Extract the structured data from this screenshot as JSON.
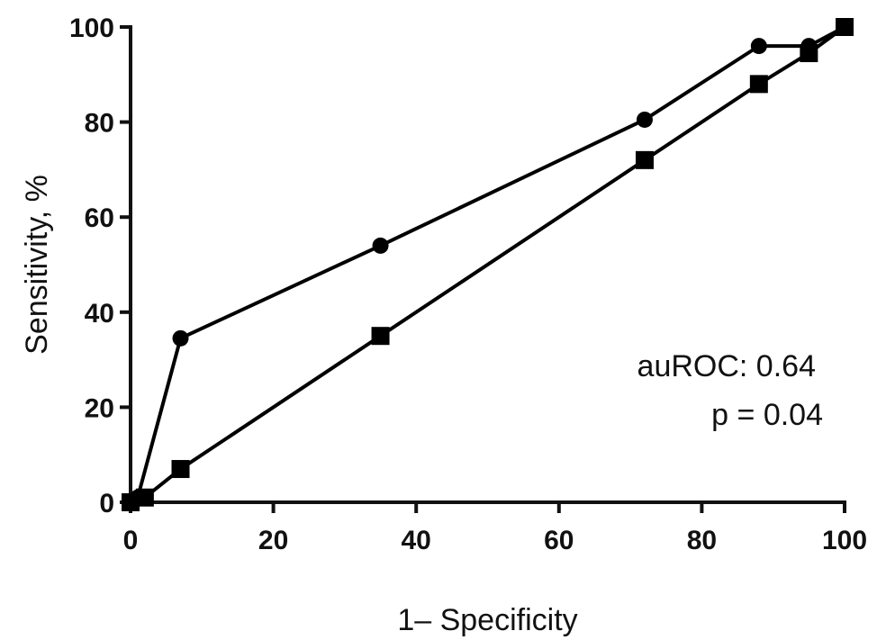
{
  "chart_data": {
    "type": "line",
    "xlabel": "1– Specificity",
    "ylabel": "Sensitivity, %",
    "xlim": [
      0,
      100
    ],
    "ylim": [
      0,
      100
    ],
    "x_ticks": [
      "0",
      "20",
      "40",
      "60",
      "80",
      "100"
    ],
    "y_ticks": [
      "0",
      "20",
      "40",
      "60",
      "80",
      "100"
    ],
    "grid": false,
    "series": [
      {
        "marker": "circle",
        "color": "#000000",
        "points": [
          [
            0,
            0
          ],
          [
            1,
            1
          ],
          [
            7,
            34.5
          ],
          [
            35,
            54
          ],
          [
            72,
            80.5
          ],
          [
            88,
            96
          ],
          [
            95,
            96
          ],
          [
            100,
            100
          ]
        ]
      },
      {
        "marker": "square",
        "color": "#000000",
        "points": [
          [
            0,
            0
          ],
          [
            2,
            1
          ],
          [
            7,
            7
          ],
          [
            35,
            35
          ],
          [
            72,
            72
          ],
          [
            88,
            88
          ],
          [
            95,
            94.5
          ],
          [
            100,
            100
          ]
        ]
      }
    ],
    "annotations": [
      "auROC: 0.64",
      "p = 0.04"
    ]
  }
}
